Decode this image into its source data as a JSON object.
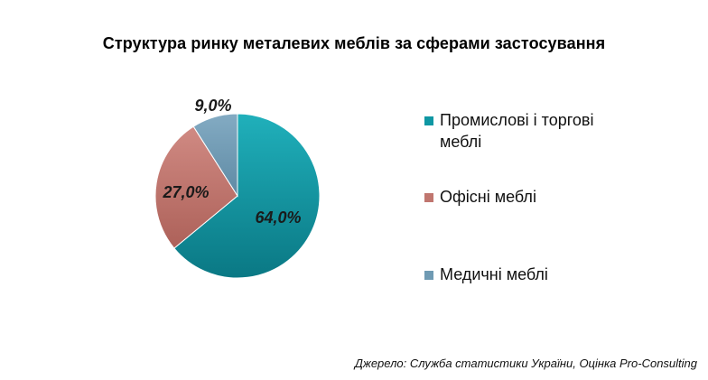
{
  "chart_data": {
    "type": "pie",
    "title": "Структура ринку металевих меблів за сферами застосування",
    "source": "Джерело: Служба статистики України, Оцінка Pro-Consulting",
    "slices": [
      {
        "name": "Промислові і торгові меблі",
        "value": 64.0,
        "label": "64,0%",
        "color": "#0f97a3"
      },
      {
        "name": "Офісні меблі",
        "value": 27.0,
        "label": "27,0%",
        "color": "#c0766f"
      },
      {
        "name": "Медичні меблі",
        "value": 9.0,
        "label": "9,0%",
        "color": "#6f9ab3"
      }
    ],
    "legend_position": "right"
  }
}
